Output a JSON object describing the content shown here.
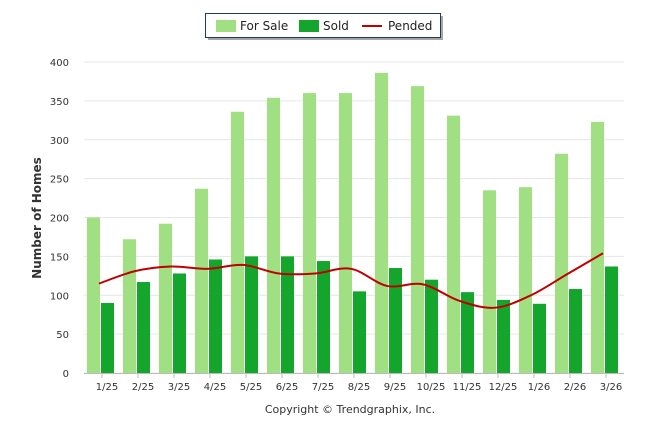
{
  "chart_data": {
    "type": "bar",
    "categories": [
      "1/25",
      "2/25",
      "3/25",
      "4/25",
      "5/25",
      "6/25",
      "7/25",
      "8/25",
      "9/25",
      "10/25",
      "11/25",
      "12/25",
      "1/26",
      "2/26",
      "3/26"
    ],
    "series": [
      {
        "name": "For Sale",
        "type": "bar",
        "color": "#a0df82",
        "values": [
          200,
          172,
          192,
          237,
          336,
          354,
          360,
          360,
          386,
          369,
          331,
          235,
          239,
          282,
          323
        ]
      },
      {
        "name": "Sold",
        "type": "bar",
        "color": "#14a62c",
        "values": [
          90,
          117,
          128,
          146,
          150,
          150,
          144,
          105,
          135,
          120,
          104,
          94,
          89,
          108,
          137
        ]
      },
      {
        "name": "Pended",
        "type": "line",
        "color": "#c00000",
        "values": [
          115,
          131,
          137,
          134,
          139,
          128,
          128,
          134,
          112,
          114,
          93,
          84,
          100,
          127,
          154
        ]
      }
    ],
    "ylabel": "Number of Homes",
    "xlabel": "",
    "ylim": [
      0,
      400
    ],
    "yticks": [
      0,
      50,
      100,
      150,
      200,
      250,
      300,
      350,
      400
    ],
    "grid": true,
    "legend": "top-center"
  },
  "footer": {
    "copyright": "Copyright © Trendgraphix, Inc."
  }
}
